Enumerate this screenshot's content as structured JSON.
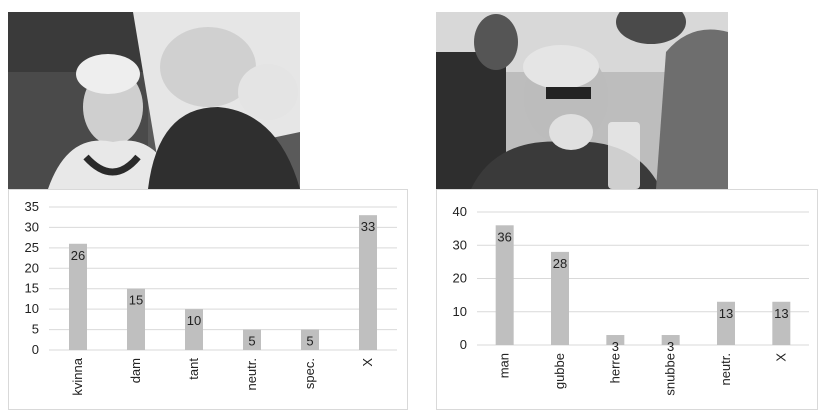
{
  "photos": [
    {
      "description_icon": "photo-elderly-woman-icon"
    },
    {
      "description_icon": "photo-elderly-man-icon"
    }
  ],
  "chart_data": [
    {
      "type": "bar",
      "categories": [
        "kvinna",
        "dam",
        "tant",
        "neutr.",
        "spec.",
        "X"
      ],
      "values": [
        26,
        15,
        10,
        5,
        5,
        33
      ],
      "ylim": [
        0,
        35
      ],
      "yticks": [
        0,
        5,
        10,
        15,
        20,
        25,
        30,
        35
      ],
      "grid": true,
      "bar_color": "#bfbfbf",
      "grid_color": "#d9d9d9"
    },
    {
      "type": "bar",
      "categories": [
        "man",
        "gubbe",
        "herre",
        "snubbe",
        "neutr.",
        "X"
      ],
      "values": [
        36,
        28,
        3,
        3,
        13,
        13
      ],
      "ylim": [
        0,
        40
      ],
      "yticks": [
        0,
        10,
        20,
        30,
        40
      ],
      "grid": true,
      "bar_color": "#bfbfbf",
      "grid_color": "#d9d9d9"
    }
  ]
}
